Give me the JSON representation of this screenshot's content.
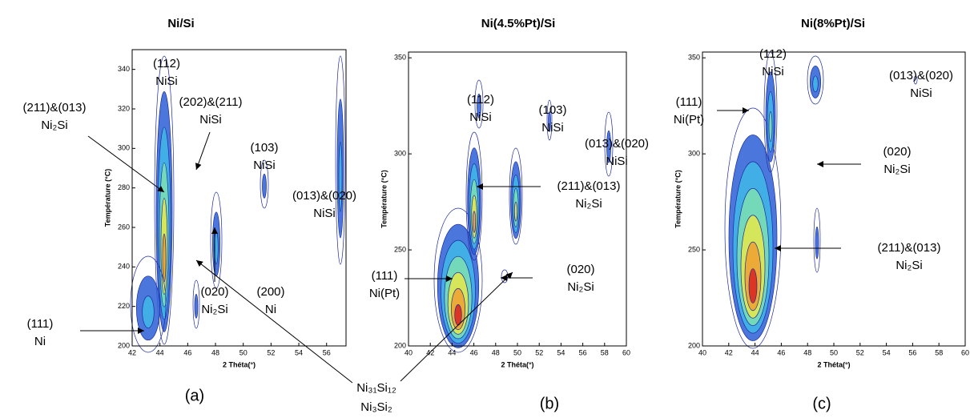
{
  "chart_data": [
    {
      "type": "contour",
      "title": "Ni/Si",
      "x_label": "2 Théta(°)",
      "y_label": "Température (°C)",
      "panel_label": "(a)",
      "xlim": [
        42,
        57.4
      ],
      "ylim": [
        200,
        350
      ],
      "xticks": [
        42,
        44,
        46,
        48,
        50,
        52,
        54,
        56
      ],
      "yticks": [
        200,
        220,
        240,
        260,
        280,
        300,
        320,
        340
      ],
      "annotations": [
        {
          "lines": [
            "(112)",
            "NiSi"
          ]
        },
        {
          "lines": [
            "(211)&(013)",
            "Ni₂Si"
          ]
        },
        {
          "lines": [
            "(202)&(211)",
            "NiSi"
          ]
        },
        {
          "lines": [
            "(103)",
            "NiSi"
          ]
        },
        {
          "lines": [
            "(013)&(020)",
            "NiSi"
          ]
        },
        {
          "lines": [
            "(020)",
            "Ni₂Si"
          ]
        },
        {
          "lines": [
            "(200)",
            "Ni"
          ]
        },
        {
          "lines": [
            "(111)",
            "Ni"
          ]
        }
      ]
    },
    {
      "type": "contour",
      "title": "Ni(4.5%Pt)/Si",
      "x_label": "2 Théta(°)",
      "y_label": "Température (°C)",
      "panel_label": "(b)",
      "xlim": [
        40,
        60
      ],
      "ylim": [
        200,
        353
      ],
      "xticks": [
        40,
        42,
        44,
        46,
        48,
        50,
        52,
        54,
        56,
        58,
        60
      ],
      "yticks": [
        200,
        250,
        300,
        350
      ],
      "annotations": [
        {
          "lines": [
            "(112)",
            "NiSi"
          ]
        },
        {
          "lines": [
            "(103)",
            "NiSi"
          ]
        },
        {
          "lines": [
            "(013)&(020)",
            "NiSi"
          ]
        },
        {
          "lines": [
            "(211)&(013)",
            "Ni₂Si"
          ]
        },
        {
          "lines": [
            "(020)",
            "Ni₂Si"
          ]
        },
        {
          "lines": [
            "(111)",
            "Ni(Pt)"
          ]
        }
      ]
    },
    {
      "type": "contour",
      "title": "Ni(8%Pt)/Si",
      "x_label": "2 Théta(°)",
      "y_label": "Température (°C)",
      "panel_label": "(c)",
      "xlim": [
        40,
        60
      ],
      "ylim": [
        200,
        353
      ],
      "xticks": [
        40,
        42,
        44,
        46,
        48,
        50,
        52,
        54,
        56,
        58,
        60
      ],
      "yticks": [
        200,
        250,
        300,
        350
      ],
      "annotations": [
        {
          "lines": [
            "(112)",
            "NiSi"
          ]
        },
        {
          "lines": [
            "(013)&(020)",
            "NiSi"
          ]
        },
        {
          "lines": [
            "(111)",
            "Ni(Pt)"
          ]
        },
        {
          "lines": [
            "(020)",
            "Ni₂Si"
          ]
        },
        {
          "lines": [
            "(211)&(013)",
            "Ni₂Si"
          ]
        }
      ]
    }
  ],
  "shared_annotation": {
    "lines": [
      "Ni₃₁Si₁₂",
      "Ni₃Si₂"
    ]
  }
}
